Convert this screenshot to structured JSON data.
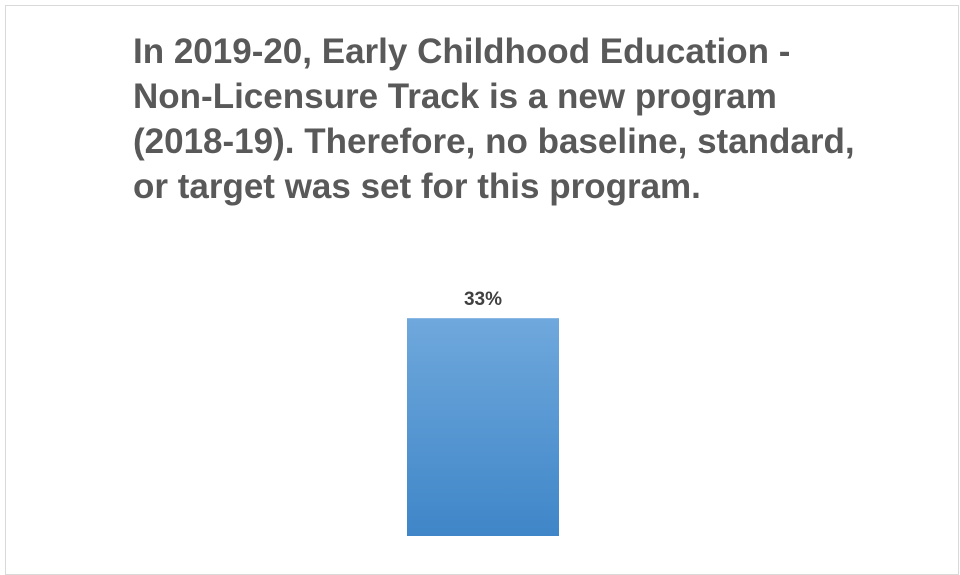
{
  "chart_data": {
    "type": "bar",
    "title": "In 2019-20, Early Childhood Education - Non-Licensure Track is a new program (2018-19). Therefore, no baseline, standard, or target was set for this program.",
    "categories": [
      ""
    ],
    "series": [
      {
        "values": [
          33
        ],
        "data_labels": [
          "33%"
        ]
      }
    ],
    "ylim": [
      0,
      40
    ],
    "grid": false,
    "legend": "none",
    "bar_color_top": "#6fa8dc",
    "bar_color_bottom": "#3f86c8"
  }
}
